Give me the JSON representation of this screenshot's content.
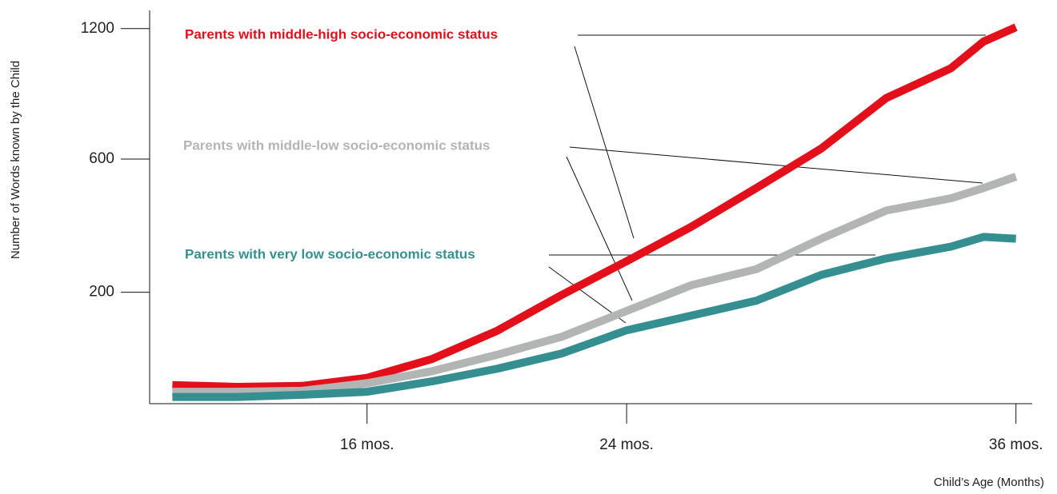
{
  "chart_data": {
    "type": "line",
    "y_label": "Number of Words known by the Child",
    "x_label": "Child’s Age (Months)",
    "x": [
      10,
      12,
      14,
      16,
      18,
      20,
      22,
      24,
      26,
      28,
      30,
      32,
      34,
      35,
      36
    ],
    "series": [
      {
        "name": "Parents with middle-high socio-economic status",
        "color": "#e3101b",
        "values": [
          48,
          46,
          47,
          56,
          80,
          124,
          194,
          274,
          370,
          495,
          641,
          855,
          996,
          1131,
          1207
        ]
      },
      {
        "name": "Parents with middle-low socio-economic status",
        "color": "#b3b5b4",
        "values": [
          41,
          41,
          42,
          50,
          64,
          86,
          114,
          161,
          216,
          254,
          335,
          420,
          460,
          495,
          535
        ]
      },
      {
        "name": "Parents with very low socio-economic status",
        "color": "#358f91",
        "values": [
          36,
          36,
          38,
          41,
          52,
          67,
          88,
          125,
          152,
          182,
          240,
          281,
          313,
          340,
          335
        ]
      }
    ],
    "xlim": [
      9.3,
      36.5
    ],
    "xticks": [
      {
        "value": 16,
        "label": "16 mos."
      },
      {
        "value": 24,
        "label": "24 mos."
      },
      {
        "value": 36,
        "label": "36 mos."
      }
    ],
    "ylim": [
      30,
      1300
    ],
    "yticks": [
      200,
      600,
      1200
    ],
    "y_scale": "sqrt"
  }
}
